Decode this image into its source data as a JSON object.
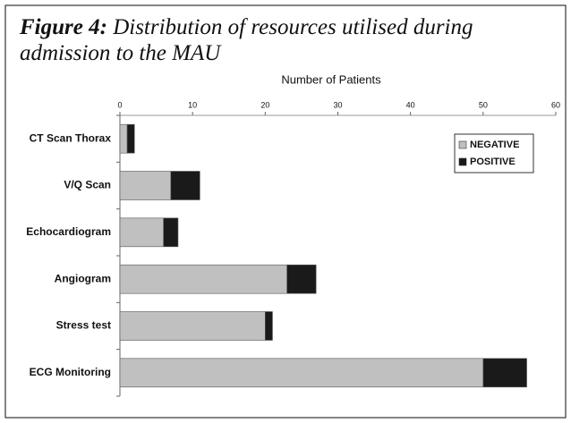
{
  "chart_data": {
    "type": "stacked_barh",
    "figure_label": "Figure 4:",
    "title": "Distribution of resources utilised during admission to the MAU",
    "x_label": "Number of Patients",
    "categories": [
      "CT Scan Thorax",
      "V/Q Scan",
      "Echocardiogram",
      "Angiogram",
      "Stress test",
      "ECG Monitoring"
    ],
    "series": [
      {
        "name": "NEGATIVE",
        "color": "#c0c0c0",
        "values": [
          1,
          7,
          6,
          23,
          20,
          50
        ]
      },
      {
        "name": "POSITIVE",
        "color": "#1a1a1a",
        "values": [
          1,
          4,
          2,
          4,
          1,
          6
        ]
      }
    ],
    "xlim": [
      0,
      60
    ],
    "xticks": [
      0,
      10,
      20,
      30,
      40,
      50,
      60
    ],
    "legend": "upper right"
  }
}
